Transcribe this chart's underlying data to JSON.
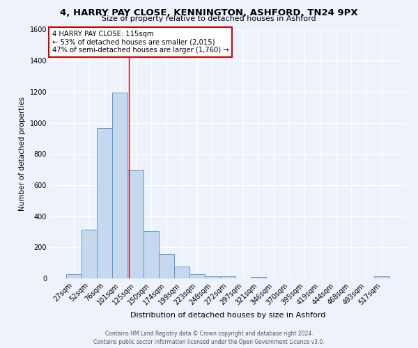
{
  "title": "4, HARRY PAY CLOSE, KENNINGTON, ASHFORD, TN24 9PX",
  "subtitle": "Size of property relative to detached houses in Ashford",
  "xlabel": "Distribution of detached houses by size in Ashford",
  "ylabel": "Number of detached properties",
  "categories": [
    "27sqm",
    "52sqm",
    "76sqm",
    "101sqm",
    "125sqm",
    "150sqm",
    "174sqm",
    "199sqm",
    "223sqm",
    "248sqm",
    "272sqm",
    "297sqm",
    "321sqm",
    "346sqm",
    "370sqm",
    "395sqm",
    "419sqm",
    "444sqm",
    "468sqm",
    "493sqm",
    "517sqm"
  ],
  "values": [
    25,
    315,
    965,
    1195,
    700,
    305,
    155,
    75,
    25,
    15,
    15,
    0,
    10,
    0,
    0,
    0,
    0,
    0,
    0,
    0,
    15
  ],
  "bar_color": "#c5d8ee",
  "bar_edge_color": "#5b9bd5",
  "background_color": "#eef2fb",
  "ylim": [
    0,
    1600
  ],
  "yticks": [
    0,
    200,
    400,
    600,
    800,
    1000,
    1200,
    1400,
    1600
  ],
  "property_line_x": 3.56,
  "annotation_title": "4 HARRY PAY CLOSE: 115sqm",
  "annotation_line1": "← 53% of detached houses are smaller (2,015)",
  "annotation_line2": "47% of semi-detached houses are larger (1,760) →",
  "annotation_box_color": "#ffffff",
  "annotation_box_edge": "#cc0000",
  "footer_line1": "Contains HM Land Registry data © Crown copyright and database right 2024.",
  "footer_line2": "Contains public sector information licensed under the Open Government Licence v3.0."
}
